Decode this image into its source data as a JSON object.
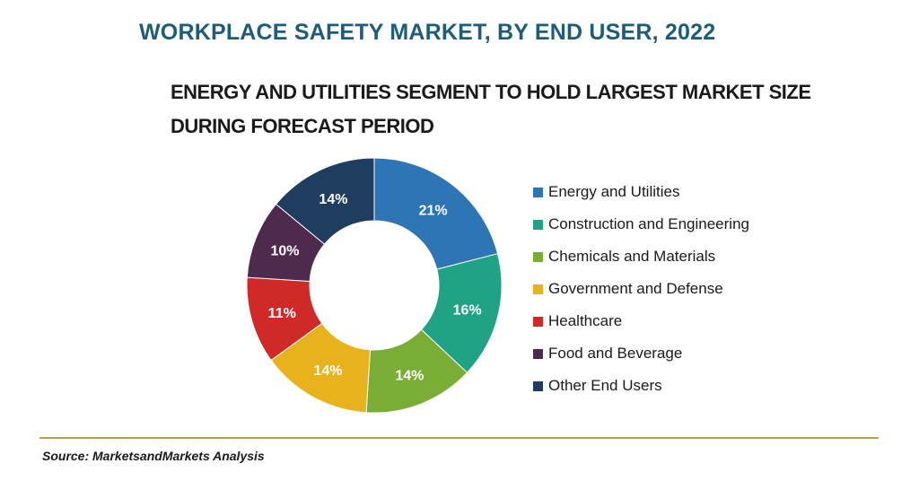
{
  "header": {
    "title": "WORKPLACE SAFETY MARKET, BY END USER, 2022",
    "subtitle": "ENERGY AND UTILITIES SEGMENT TO HOLD LARGEST MARKET SIZE DURING FORECAST PERIOD"
  },
  "chart_data": {
    "type": "pie",
    "title": "WORKPLACE SAFETY MARKET, BY END USER, 2022",
    "subtitle": "ENERGY AND UTILITIES SEGMENT TO HOLD LARGEST MARKET SIZE DURING FORECAST PERIOD",
    "style": "donut",
    "legend_position": "right",
    "categories": [
      "Energy and Utilities",
      "Construction and Engineering",
      "Chemicals and Materials",
      "Government and Defense",
      "Healthcare",
      "Food and Beverage",
      "Other End Users"
    ],
    "values": [
      21,
      16,
      14,
      14,
      11,
      10,
      14
    ],
    "labels": [
      "21%",
      "16%",
      "14%",
      "14%",
      "11%",
      "10%",
      "14%"
    ],
    "colors": [
      "#2e75b6",
      "#1fa384",
      "#79ad35",
      "#e8b21c",
      "#cf2a27",
      "#4f2a4f",
      "#1f3d5f"
    ],
    "start": "12 o'clock, clockwise"
  },
  "footer": {
    "source": "Source: MarketsandMarkets Analysis"
  }
}
